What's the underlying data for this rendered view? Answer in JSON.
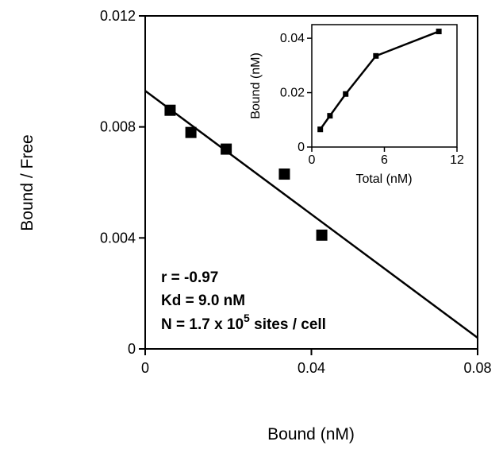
{
  "chart_data": [
    {
      "type": "scatter",
      "xlabel": "Bound (nM)",
      "ylabel": "Bound / Free",
      "xlim": [
        0,
        0.08
      ],
      "ylim": [
        0,
        0.012
      ],
      "x_ticks": [
        "0",
        "0.04",
        "0.08"
      ],
      "y_ticks": [
        "0",
        "0.004",
        "0.008",
        "0.012"
      ],
      "x_tick_values": [
        0,
        0.04,
        0.08
      ],
      "y_tick_values": [
        0,
        0.004,
        0.008,
        0.012
      ],
      "series": [
        {
          "x": [
            0.006,
            0.011,
            0.0195,
            0.0335,
            0.0425
          ],
          "y": [
            0.0086,
            0.0078,
            0.0072,
            0.0063,
            0.0041
          ]
        }
      ],
      "fit_line": {
        "x": [
          0,
          0.08
        ],
        "y": [
          0.0093,
          0.0004
        ]
      },
      "annotations": {
        "r": "r = -0.97",
        "kd": "Kd = 9.0 nM",
        "n_prefix": "N = 1.7 x 10",
        "n_exp": "5",
        "n_suffix": " sites / cell"
      },
      "grid": false,
      "legend": "none"
    },
    {
      "type": "line",
      "xlabel": "Total (nM)",
      "ylabel": "Bound (nM)",
      "xlim": [
        0,
        12
      ],
      "ylim": [
        0,
        0.045
      ],
      "x_ticks": [
        "0",
        "6",
        "12"
      ],
      "y_ticks": [
        "0",
        "0.02",
        "0.04"
      ],
      "x_tick_values": [
        0,
        6,
        12
      ],
      "y_tick_values": [
        0,
        0.02,
        0.04
      ],
      "series": [
        {
          "x": [
            0.7,
            1.5,
            2.8,
            5.3,
            10.5
          ],
          "y": [
            0.0065,
            0.0115,
            0.0195,
            0.0335,
            0.0425
          ]
        }
      ],
      "grid": false,
      "legend": "none"
    }
  ]
}
